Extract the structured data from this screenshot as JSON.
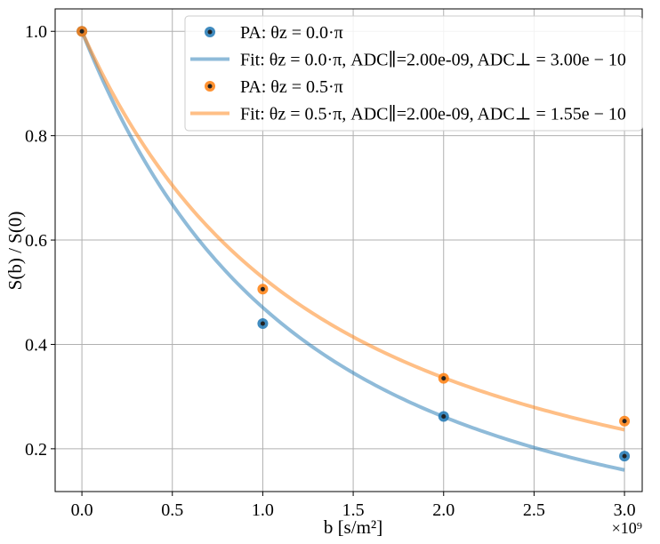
{
  "chart_data": {
    "type": "scatter",
    "title": "",
    "xlabel": "b [s/m²]",
    "ylabel": "S(b) / S(0)",
    "x_offset_label": "×10⁹",
    "xlim": [
      -0.148,
      3.098
    ],
    "ylim": [
      0.118,
      1.043
    ],
    "xticks": [
      0.0,
      0.5,
      1.0,
      1.5,
      2.0,
      2.5,
      3.0
    ],
    "xtick_labels": [
      "0.0",
      "0.5",
      "1.0",
      "1.5",
      "2.0",
      "2.5",
      "3.0"
    ],
    "yticks": [
      0.2,
      0.4,
      0.6,
      0.8,
      1.0
    ],
    "ytick_labels": [
      "0.2",
      "0.4",
      "0.6",
      "0.8",
      "1.0"
    ],
    "grid": true,
    "legend_position": "top-right",
    "series": [
      {
        "name": "PA: θz = 0.0·π",
        "kind": "points",
        "color": "#1f77b4",
        "x": [
          0,
          1,
          2,
          3
        ],
        "y": [
          1.0,
          0.44,
          0.262,
          0.186
        ]
      },
      {
        "name": "Fit: θz = 0.0·π, ADC∥=2.00e-09, ADC⊥ = 3.00e − 10",
        "kind": "fit",
        "color": "#1f77b4",
        "adc_par": 2e-09,
        "adc_perp": 3e-10
      },
      {
        "name": "PA: θz = 0.5·π",
        "kind": "points",
        "color": "#ff7f0e",
        "x": [
          0,
          1,
          2,
          3
        ],
        "y": [
          1.0,
          0.506,
          0.335,
          0.253
        ]
      },
      {
        "name": "Fit: θz = 0.5·π, ADC∥=2.00e-09, ADC⊥ = 1.55e − 10",
        "kind": "fit",
        "color": "#ff7f0e",
        "adc_par": 2e-09,
        "adc_perp": 1.55e-10
      }
    ]
  }
}
